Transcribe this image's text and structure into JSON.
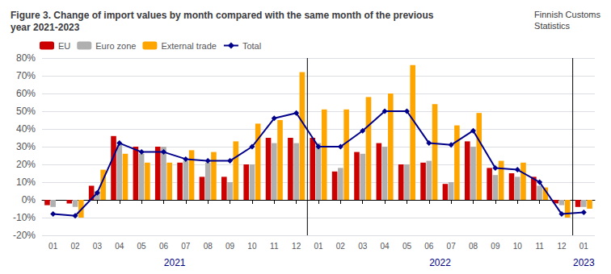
{
  "chart_data": {
    "type": "bar",
    "title": "Figure 3. Change of import values by month compared with the same month of the previous\nyear 2021-2023",
    "subtitle": "Finnish Customs\nStatistics",
    "categories": [
      "01",
      "02",
      "03",
      "04",
      "05",
      "06",
      "07",
      "08",
      "09",
      "10",
      "11",
      "12",
      "01",
      "02",
      "03",
      "04",
      "05",
      "06",
      "07",
      "08",
      "09",
      "10",
      "11",
      "12",
      "01"
    ],
    "series": [
      {
        "name": "EU",
        "type": "bar",
        "color": "#CC0000",
        "values": [
          -3,
          -2,
          8,
          36,
          30,
          30,
          21,
          13,
          13,
          20,
          35,
          35,
          35,
          16,
          27,
          32,
          20,
          21,
          9,
          33,
          18,
          15,
          13,
          -2,
          -4
        ]
      },
      {
        "name": "Euro zone",
        "type": "bar",
        "color": "#B0B0B0",
        "values": [
          -4,
          -4,
          5,
          31,
          26,
          30,
          22,
          21,
          10,
          20,
          32,
          32,
          32,
          18,
          26,
          30,
          20,
          22,
          10,
          30,
          14,
          13,
          8,
          -3,
          -4
        ]
      },
      {
        "name": "External trade",
        "type": "bar",
        "color": "#FFA500",
        "values": [
          0,
          -10,
          17,
          26,
          21,
          21,
          28,
          27,
          33,
          43,
          45,
          72,
          51,
          51,
          58,
          60,
          76,
          54,
          42,
          49,
          22,
          21,
          7,
          -10,
          -5
        ]
      },
      {
        "name": "Total",
        "type": "line",
        "color": "#00008B",
        "marker": "diamond",
        "values": [
          -8,
          -9,
          4,
          32,
          27,
          27,
          23,
          22,
          22,
          30,
          46,
          49,
          30,
          30,
          39,
          50,
          50,
          32,
          31,
          39,
          18,
          17,
          10,
          -8,
          -7
        ]
      }
    ],
    "annotations": [
      {
        "text": "2021",
        "x": 5.5
      },
      {
        "text": "2022",
        "x": 17.5
      },
      {
        "text": "2023",
        "x": 24.0
      }
    ],
    "dividers": [
      11.5,
      23.5
    ],
    "ylim": [
      -20,
      80
    ],
    "yticks": [
      {
        "value": -20,
        "label": "-20%"
      },
      {
        "value": -10,
        "label": "-10%"
      },
      {
        "value": 0,
        "label": "0%"
      },
      {
        "value": 10,
        "label": "10%"
      },
      {
        "value": 20,
        "label": "20%"
      },
      {
        "value": 30,
        "label": "30%"
      },
      {
        "value": 40,
        "label": "40%"
      },
      {
        "value": 50,
        "label": "50%"
      },
      {
        "value": 60,
        "label": "60%"
      },
      {
        "value": 70,
        "label": "70%"
      },
      {
        "value": 80,
        "label": "80%"
      }
    ],
    "grid": true,
    "legend": "upper left"
  }
}
